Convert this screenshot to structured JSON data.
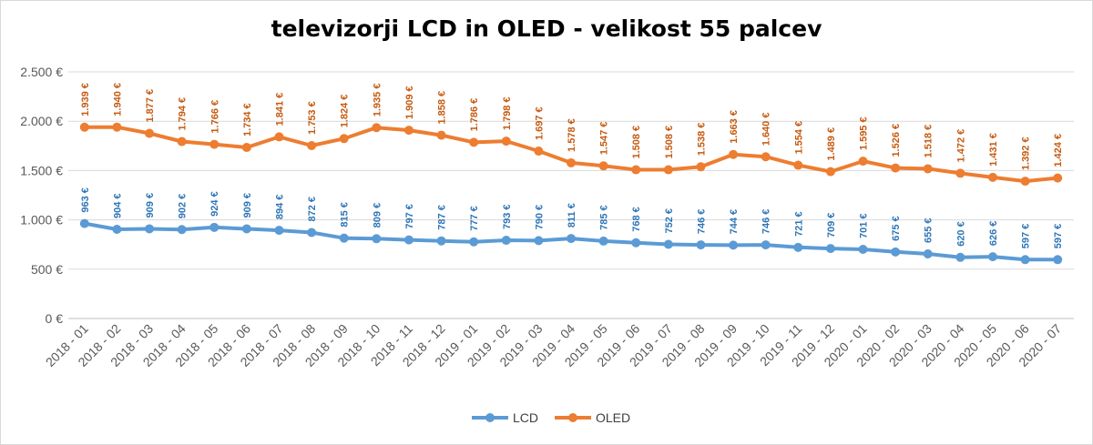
{
  "chart_data": {
    "type": "line",
    "title": "televizorji LCD in OLED - velikost 55 palcev",
    "xlabel": "",
    "ylabel": "",
    "ylim": [
      0,
      2500
    ],
    "yticks": [
      0,
      500,
      1000,
      1500,
      2000,
      2500
    ],
    "ytick_labels": [
      "0 €",
      "500 €",
      "1.000 €",
      "1.500 €",
      "2.000 €",
      "2.500 €"
    ],
    "grid": true,
    "legend_position": "bottom",
    "categories": [
      "2018 - 01",
      "2018 - 02",
      "2018 - 03",
      "2018 - 04",
      "2018 - 05",
      "2018 - 06",
      "2018 - 07",
      "2018 - 08",
      "2018 - 09",
      "2018 - 10",
      "2018 - 11",
      "2018 - 12",
      "2019 - 01",
      "2019 - 02",
      "2019 - 03",
      "2019 - 04",
      "2019 - 05",
      "2019 - 06",
      "2019 - 07",
      "2019 - 08",
      "2019 - 09",
      "2019 - 10",
      "2019 - 11",
      "2019 - 12",
      "2020 - 01",
      "2020 - 02",
      "2020 - 03",
      "2020 - 04",
      "2020 - 05",
      "2020 - 06",
      "2020 - 07"
    ],
    "series": [
      {
        "name": "LCD",
        "color": "#5b9bd5",
        "label_color": "#2e75b6",
        "values": [
          963,
          904,
          909,
          902,
          924,
          909,
          894,
          872,
          815,
          809,
          797,
          787,
          777,
          793,
          790,
          811,
          785,
          768,
          752,
          746,
          744,
          746,
          721,
          709,
          701,
          675,
          655,
          620,
          626,
          597,
          597
        ],
        "labels": [
          "963 €",
          "904 €",
          "909 €",
          "902 €",
          "924 €",
          "909 €",
          "894 €",
          "872 €",
          "815 €",
          "809 €",
          "797 €",
          "787 €",
          "777 €",
          "793 €",
          "790 €",
          "811 €",
          "785 €",
          "768 €",
          "752 €",
          "746 €",
          "744 €",
          "746 €",
          "721 €",
          "709 €",
          "701 €",
          "675 €",
          "655 €",
          "620 €",
          "626 €",
          "597 €",
          "597 €"
        ]
      },
      {
        "name": "OLED",
        "color": "#ed7d31",
        "label_color": "#c55a11",
        "values": [
          1939,
          1940,
          1877,
          1794,
          1766,
          1734,
          1841,
          1753,
          1824,
          1935,
          1909,
          1858,
          1786,
          1798,
          1697,
          1578,
          1547,
          1508,
          1508,
          1538,
          1663,
          1640,
          1554,
          1489,
          1595,
          1526,
          1518,
          1472,
          1431,
          1392,
          1424
        ],
        "labels": [
          "1.939 €",
          "1.940 €",
          "1.877 €",
          "1.794 €",
          "1.766 €",
          "1.734 €",
          "1.841 €",
          "1.753 €",
          "1.824 €",
          "1.935 €",
          "1.909 €",
          "1.858 €",
          "1.786 €",
          "1.798 €",
          "1.697 €",
          "1.578 €",
          "1.547 €",
          "1.508 €",
          "1.508 €",
          "1.538 €",
          "1.663 €",
          "1.640 €",
          "1.554 €",
          "1.489 €",
          "1.595 €",
          "1.526 €",
          "1.518 €",
          "1.472 €",
          "1.431 €",
          "1.392 €",
          "1.424 €"
        ]
      }
    ]
  }
}
